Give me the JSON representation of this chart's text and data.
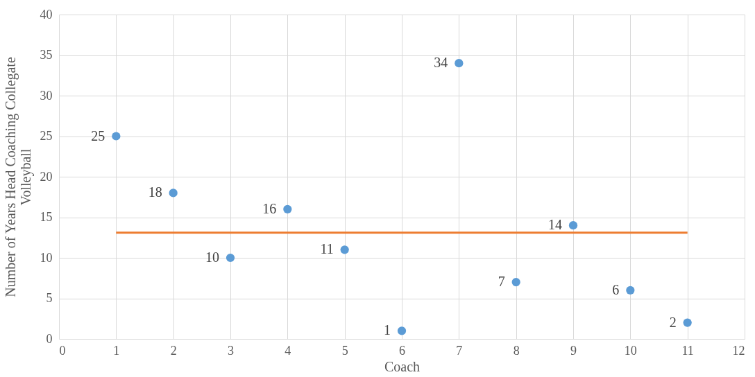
{
  "chart_data": {
    "type": "scatter",
    "xlabel": "Coach",
    "ylabel": "Number of Years Head Coaching Collegate Volleyball",
    "x": [
      1,
      2,
      3,
      4,
      5,
      6,
      7,
      8,
      9,
      10,
      11
    ],
    "series": [
      {
        "color": "#5b9bd5",
        "marker": "circle",
        "values": [
          25,
          18,
          10,
          16,
          11,
          1,
          34,
          7,
          14,
          6,
          2
        ],
        "value_labels": [
          "25",
          "18",
          "10",
          "16",
          "11",
          "1",
          "34",
          "7",
          "14",
          "6",
          "2"
        ]
      },
      {
        "type": "line",
        "color": "#ed7d31",
        "marker": "none",
        "x": [
          1,
          11
        ],
        "values": [
          13.1,
          13.1
        ]
      }
    ],
    "xlim": [
      0,
      12
    ],
    "xticks": [
      0,
      1,
      2,
      3,
      4,
      5,
      6,
      7,
      8,
      9,
      10,
      11,
      12
    ],
    "ylim": [
      0,
      40
    ],
    "yticks": [
      0,
      5,
      10,
      15,
      20,
      25,
      30,
      35,
      40
    ],
    "grid": true
  }
}
